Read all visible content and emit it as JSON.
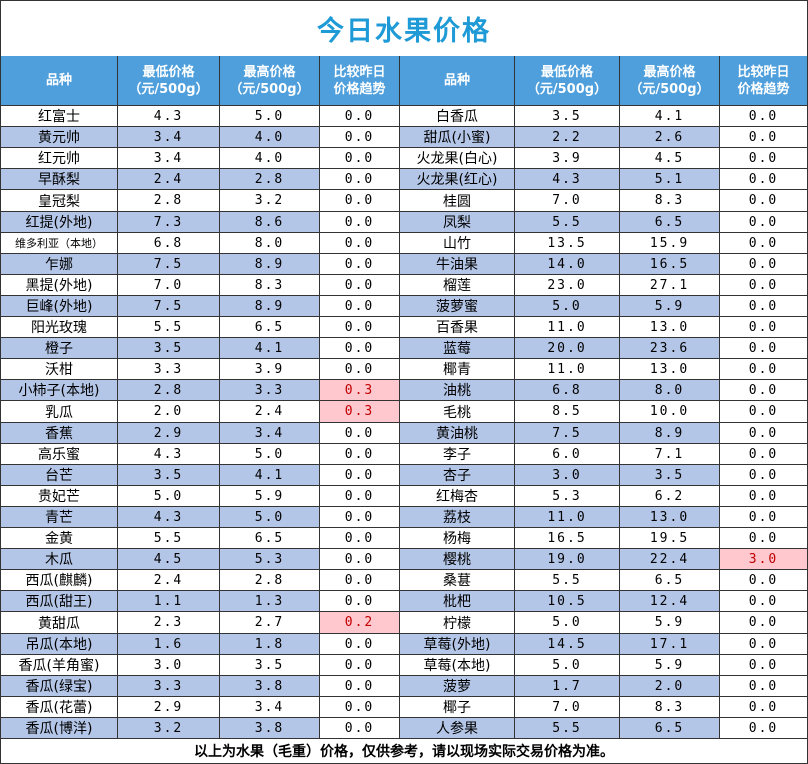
{
  "header": {
    "title": "今日水果价格"
  },
  "table": {
    "columns": [
      [
        "品种"
      ],
      [
        "最低价格",
        "（元/500g）"
      ],
      [
        "最高价格",
        "（元/500g）"
      ],
      [
        "比较昨日",
        "价格趋势"
      ],
      [
        "品种"
      ],
      [
        "最低价格",
        "（元/500g）"
      ],
      [
        "最高价格",
        "（元/500g）"
      ],
      [
        "比较昨日",
        "价格趋势"
      ]
    ],
    "rows": [
      [
        "红富士",
        "4.3",
        "5.0",
        "0.0",
        "白香瓜",
        "3.5",
        "4.1",
        "0.0"
      ],
      [
        "黄元帅",
        "3.4",
        "4.0",
        "0.0",
        "甜瓜(小蜜)",
        "2.2",
        "2.6",
        "0.0"
      ],
      [
        "红元帅",
        "3.4",
        "4.0",
        "0.0",
        "火龙果(白心)",
        "3.9",
        "4.5",
        "0.0"
      ],
      [
        "早酥梨",
        "2.4",
        "2.8",
        "0.0",
        "火龙果(红心)",
        "4.3",
        "5.1",
        "0.0"
      ],
      [
        "皇冠梨",
        "2.8",
        "3.2",
        "0.0",
        "桂圆",
        "7.0",
        "8.3",
        "0.0"
      ],
      [
        "红提(外地)",
        "7.3",
        "8.6",
        "0.0",
        "凤梨",
        "5.5",
        "6.5",
        "0.0"
      ],
      [
        "维多利亚（本地）",
        "6.8",
        "8.0",
        "0.0",
        "山竹",
        "13.5",
        "15.9",
        "0.0"
      ],
      [
        "乍娜",
        "7.5",
        "8.9",
        "0.0",
        "牛油果",
        "14.0",
        "16.5",
        "0.0"
      ],
      [
        "黑提(外地)",
        "7.0",
        "8.3",
        "0.0",
        "榴莲",
        "23.0",
        "27.1",
        "0.0"
      ],
      [
        "巨峰(外地)",
        "7.5",
        "8.9",
        "0.0",
        "菠萝蜜",
        "5.0",
        "5.9",
        "0.0"
      ],
      [
        "阳光玫瑰",
        "5.5",
        "6.5",
        "0.0",
        "百香果",
        "11.0",
        "13.0",
        "0.0"
      ],
      [
        "橙子",
        "3.5",
        "4.1",
        "0.0",
        "蓝莓",
        "20.0",
        "23.6",
        "0.0"
      ],
      [
        "沃柑",
        "3.3",
        "3.9",
        "0.0",
        "椰青",
        "11.0",
        "13.0",
        "0.0"
      ],
      [
        "小柿子(本地)",
        "2.8",
        "3.3",
        "0.3",
        "油桃",
        "6.8",
        "8.0",
        "0.0"
      ],
      [
        "乳瓜",
        "2.0",
        "2.4",
        "0.3",
        "毛桃",
        "8.5",
        "10.0",
        "0.0"
      ],
      [
        "香蕉",
        "2.9",
        "3.4",
        "0.0",
        "黄油桃",
        "7.5",
        "8.9",
        "0.0"
      ],
      [
        "高乐蜜",
        "4.3",
        "5.0",
        "0.0",
        "李子",
        "6.0",
        "7.1",
        "0.0"
      ],
      [
        "台芒",
        "3.5",
        "4.1",
        "0.0",
        "杏子",
        "3.0",
        "3.5",
        "0.0"
      ],
      [
        "贵妃芒",
        "5.0",
        "5.9",
        "0.0",
        "红梅杏",
        "5.3",
        "6.2",
        "0.0"
      ],
      [
        "青芒",
        "4.3",
        "5.0",
        "0.0",
        "荔枝",
        "11.0",
        "13.0",
        "0.0"
      ],
      [
        "金黄",
        "5.5",
        "6.5",
        "0.0",
        "杨梅",
        "16.5",
        "19.5",
        "0.0"
      ],
      [
        "木瓜",
        "4.5",
        "5.3",
        "0.0",
        "樱桃",
        "19.0",
        "22.4",
        "3.0"
      ],
      [
        "西瓜(麒麟)",
        "2.4",
        "2.8",
        "0.0",
        "桑葚",
        "5.5",
        "6.5",
        "0.0"
      ],
      [
        "西瓜(甜王)",
        "1.1",
        "1.3",
        "0.0",
        "枇杷",
        "10.5",
        "12.4",
        "0.0"
      ],
      [
        "黄甜瓜",
        "2.3",
        "2.7",
        "0.2",
        "柠檬",
        "5.0",
        "5.9",
        "0.0"
      ],
      [
        "吊瓜(本地)",
        "1.6",
        "1.8",
        "0.0",
        "草莓(外地)",
        "14.5",
        "17.1",
        "0.0"
      ],
      [
        "香瓜(羊角蜜)",
        "3.0",
        "3.5",
        "0.0",
        "草莓(本地)",
        "5.0",
        "5.9",
        "0.0"
      ],
      [
        "香瓜(绿宝)",
        "3.3",
        "3.8",
        "0.0",
        "菠萝",
        "1.7",
        "2.0",
        "0.0"
      ],
      [
        "香瓜(花蕾)",
        "2.9",
        "3.4",
        "0.0",
        "椰子",
        "7.0",
        "8.3",
        "0.0"
      ],
      [
        "香瓜(博洋)",
        "3.2",
        "3.8",
        "0.0",
        "人参果",
        "5.5",
        "6.5",
        "0.0"
      ]
    ]
  },
  "footer": {
    "note": "以上为水果（毛重）价格，仅供参考，请以现场实际交易价格为准。"
  }
}
